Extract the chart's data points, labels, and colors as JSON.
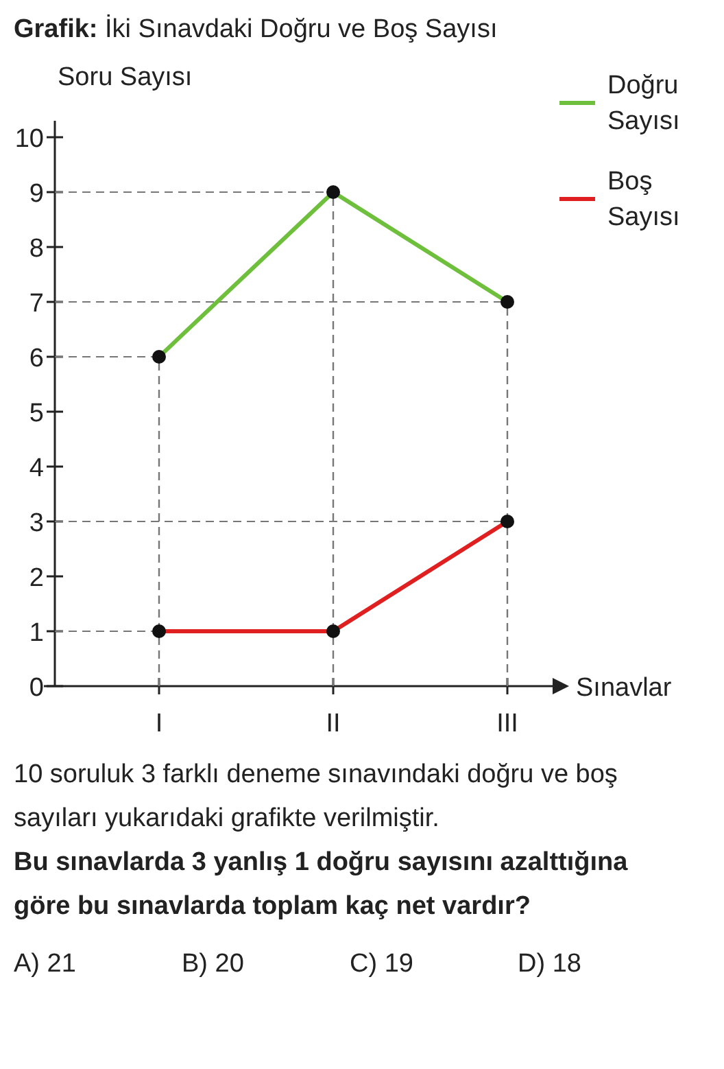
{
  "chart_data": {
    "type": "line",
    "title": "Grafik: İki Sınavdaki Doğru ve Boş Sayısı",
    "xlabel": "Sınavlar",
    "ylabel": "Soru Sayısı",
    "categories": [
      "I",
      "II",
      "III"
    ],
    "series": [
      {
        "name": "Doğru Sayısı",
        "color": "#6dbf3c",
        "values": [
          6,
          9,
          7
        ]
      },
      {
        "name": "Boş Sayısı",
        "color": "#e02020",
        "values": [
          1,
          1,
          3
        ]
      }
    ],
    "ref_lines": [
      {
        "axis": "y",
        "value": 9,
        "color": "#777777",
        "line_style": "dashed"
      },
      {
        "axis": "y",
        "value": 7,
        "color": "#777777",
        "line_style": "dashed"
      },
      {
        "axis": "y",
        "value": 6,
        "color": "#777777",
        "line_style": "dashed"
      },
      {
        "axis": "y",
        "value": 3,
        "color": "#777777",
        "line_style": "dashed"
      },
      {
        "axis": "y",
        "value": 1,
        "color": "#777777",
        "line_style": "dashed"
      },
      {
        "axis": "x",
        "value": "I",
        "color": "#777777",
        "line_style": "dashed"
      },
      {
        "axis": "x",
        "value": "II",
        "color": "#777777",
        "line_style": "dashed"
      },
      {
        "axis": "x",
        "value": "III",
        "color": "#777777",
        "line_style": "dashed"
      }
    ],
    "ylim": [
      0,
      10.3
    ],
    "yticks": [
      0,
      1,
      2,
      3,
      4,
      5,
      6,
      7,
      8,
      9,
      10
    ],
    "grid": false,
    "legend": "top right",
    "marker": "circle",
    "line_style": "solid",
    "annotations": [
      "10 soruluk 3 farklı deneme sınavındaki doğru ve boş sayıları yukarıdaki grafikte verilmiştir.",
      "Bu sınavlarda 3 yanlış 1 doğru sayısını azalttığına göre bu sınavlarda toplam kaç net vardır?",
      "A) 21",
      "B) 20",
      "C) 19",
      "D) 18"
    ]
  }
}
